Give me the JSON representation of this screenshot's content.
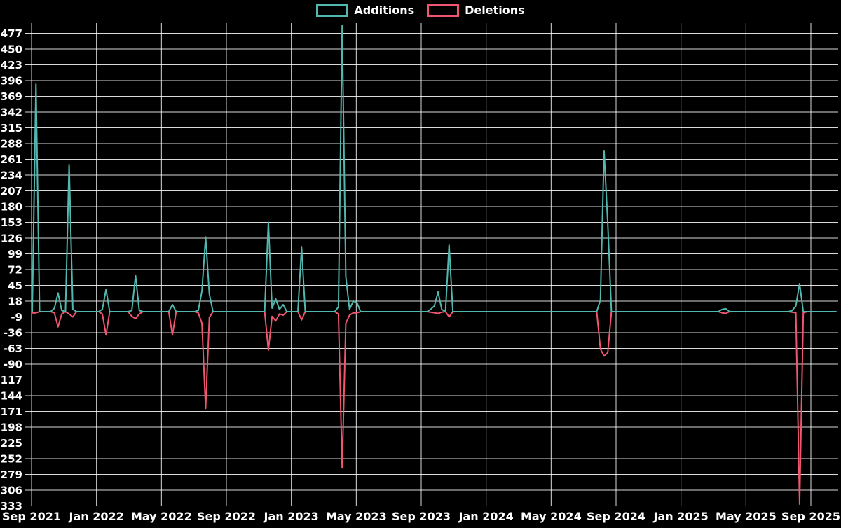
{
  "legend": {
    "additions_label": "Additions",
    "deletions_label": "Deletions"
  },
  "colors": {
    "background": "#000000",
    "grid": "#ffffff",
    "text": "#ffffff",
    "additions": "#52b7ae",
    "deletions": "#f0566f"
  },
  "chart_data": {
    "type": "line",
    "title": "",
    "xlabel": "",
    "ylabel": "",
    "grid": true,
    "legend_position": "top-center",
    "x_tick_labels": [
      "Sep 2021",
      "Jan 2022",
      "May 2022",
      "Sep 2022",
      "Jan 2023",
      "May 2023",
      "Sep 2023",
      "Jan 2024",
      "May 2024",
      "Sep 2024",
      "Jan 2025",
      "May 2025",
      "Sep 2025"
    ],
    "y_tick_labels": [
      477,
      450,
      423,
      396,
      369,
      342,
      315,
      288,
      261,
      234,
      207,
      180,
      153,
      126,
      99,
      72,
      45,
      18,
      -9,
      -36,
      -63,
      -90,
      -117,
      -144,
      -171,
      -198,
      -225,
      -252,
      -279,
      -306,
      -333
    ],
    "y_range": [
      -333,
      477
    ],
    "weeks_total": 219,
    "series_names": [
      "Additions",
      "Deletions"
    ],
    "default_value": 0,
    "spikes": [
      {
        "week": 0,
        "additions": 0,
        "deletions": -2
      },
      {
        "week": 1,
        "additions": 390,
        "deletions": -2
      },
      {
        "week": 6,
        "additions": 6,
        "deletions": -2
      },
      {
        "week": 7,
        "additions": 32,
        "deletions": -26
      },
      {
        "week": 8,
        "additions": 2,
        "deletions": -4
      },
      {
        "week": 10,
        "additions": 252,
        "deletions": -4
      },
      {
        "week": 11,
        "additions": 4,
        "deletions": -9
      },
      {
        "week": 19,
        "additions": 4,
        "deletions": -4
      },
      {
        "week": 20,
        "additions": 38,
        "deletions": -40
      },
      {
        "week": 27,
        "additions": 2,
        "deletions": -8
      },
      {
        "week": 28,
        "additions": 62,
        "deletions": -12
      },
      {
        "week": 29,
        "additions": 2,
        "deletions": -4
      },
      {
        "week": 38,
        "additions": 12,
        "deletions": -40
      },
      {
        "week": 45,
        "additions": 2,
        "deletions": -2
      },
      {
        "week": 46,
        "additions": 35,
        "deletions": -20
      },
      {
        "week": 47,
        "additions": 128,
        "deletions": -166
      },
      {
        "week": 48,
        "additions": 30,
        "deletions": -10
      },
      {
        "week": 64,
        "additions": 153,
        "deletions": -66
      },
      {
        "week": 65,
        "additions": 6,
        "deletions": -8
      },
      {
        "week": 66,
        "additions": 22,
        "deletions": -16
      },
      {
        "week": 67,
        "additions": 4,
        "deletions": -4
      },
      {
        "week": 68,
        "additions": 12,
        "deletions": -6
      },
      {
        "week": 73,
        "additions": 110,
        "deletions": -14
      },
      {
        "week": 83,
        "additions": 8,
        "deletions": -4
      },
      {
        "week": 84,
        "additions": 490,
        "deletions": -268
      },
      {
        "week": 85,
        "additions": 60,
        "deletions": -20
      },
      {
        "week": 86,
        "additions": 4,
        "deletions": -6
      },
      {
        "week": 87,
        "additions": 18,
        "deletions": -2
      },
      {
        "week": 88,
        "additions": 16,
        "deletions": -2
      },
      {
        "week": 108,
        "additions": 4,
        "deletions": -1
      },
      {
        "week": 109,
        "additions": 10,
        "deletions": -2
      },
      {
        "week": 110,
        "additions": 34,
        "deletions": -3
      },
      {
        "week": 111,
        "additions": 4,
        "deletions": -1
      },
      {
        "week": 113,
        "additions": 114,
        "deletions": -9
      },
      {
        "week": 154,
        "additions": 20,
        "deletions": -64
      },
      {
        "week": 155,
        "additions": 276,
        "deletions": -76
      },
      {
        "week": 156,
        "additions": 150,
        "deletions": -70
      },
      {
        "week": 187,
        "additions": 4,
        "deletions": -2
      },
      {
        "week": 188,
        "additions": 5,
        "deletions": -3
      },
      {
        "week": 206,
        "additions": 2,
        "deletions": -1
      },
      {
        "week": 207,
        "additions": 10,
        "deletions": -2
      },
      {
        "week": 208,
        "additions": 48,
        "deletions": -330
      },
      {
        "week": 209,
        "additions": 0,
        "deletions": -2
      }
    ]
  }
}
